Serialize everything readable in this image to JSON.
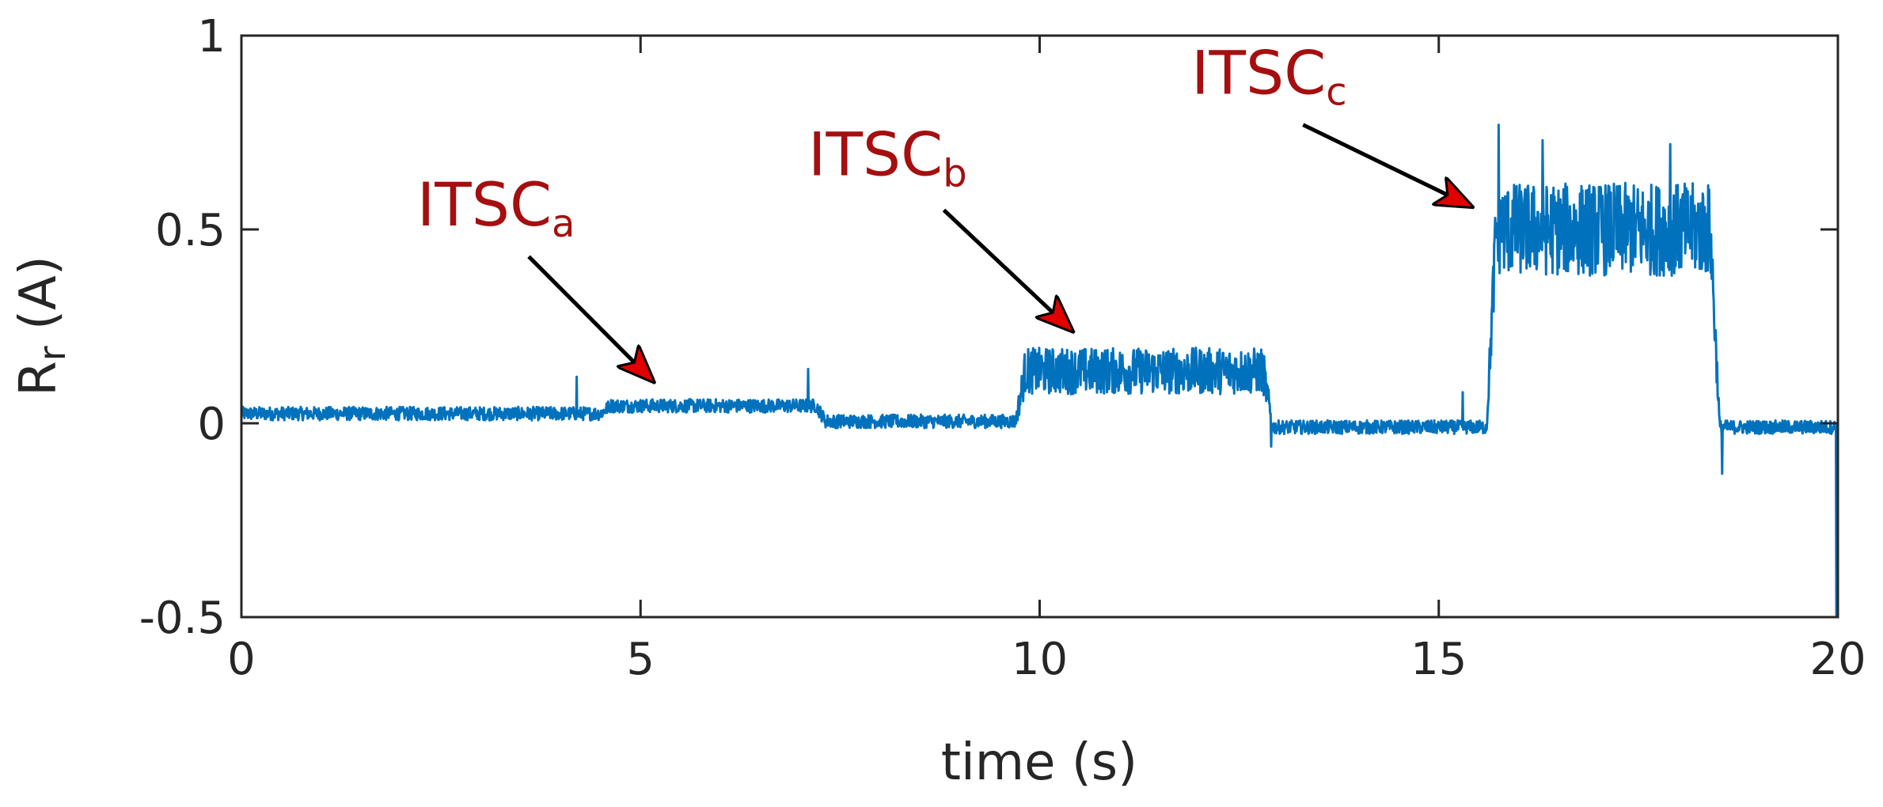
{
  "chart_data": {
    "type": "line",
    "xlabel": "time (s)",
    "ylabel": "R",
    "ylabel_sub": "r",
    "ylabel_unit": " (A)",
    "xlim": [
      0,
      20
    ],
    "ylim": [
      -0.5,
      1
    ],
    "xticks": [
      0,
      5,
      10,
      15,
      20
    ],
    "xtick_labels": [
      "0",
      "5",
      "10",
      "15",
      "20"
    ],
    "yticks": [
      -0.5,
      0,
      0.5,
      1
    ],
    "ytick_labels": [
      "-0.5",
      "0",
      "0.5",
      "1"
    ],
    "grid": false,
    "series": [
      {
        "name": "R_r",
        "color": "#0072bd",
        "segments": [
          {
            "t0": 0.0,
            "t1": 4.5,
            "mean": 0.025,
            "noise": 0.035
          },
          {
            "t0": 4.5,
            "t1": 7.2,
            "mean": 0.045,
            "noise": 0.035
          },
          {
            "t0": 7.2,
            "t1": 9.7,
            "mean": 0.005,
            "noise": 0.035
          },
          {
            "t0": 9.7,
            "t1": 12.8,
            "mean": 0.135,
            "noise": 0.12
          },
          {
            "t0": 12.8,
            "t1": 15.6,
            "mean": -0.01,
            "noise": 0.035
          },
          {
            "t0": 15.6,
            "t1": 18.4,
            "mean": 0.5,
            "noise": 0.24
          },
          {
            "t0": 18.4,
            "t1": 20.0,
            "mean": -0.01,
            "noise": 0.035
          }
        ],
        "spikes": [
          {
            "t": 4.2,
            "value": 0.12
          },
          {
            "t": 7.1,
            "value": 0.14
          },
          {
            "t": 15.3,
            "value": 0.08
          },
          {
            "t": 15.75,
            "value": 0.77
          },
          {
            "t": 16.3,
            "value": 0.73
          },
          {
            "t": 17.9,
            "value": 0.72
          },
          {
            "t": 18.55,
            "value": -0.13
          },
          {
            "t": 12.9,
            "value": -0.06
          },
          {
            "t": 19.98,
            "value": -0.5
          }
        ]
      }
    ],
    "annotations": [
      {
        "main": "ITSC",
        "sub": "a",
        "text_x": 2.2,
        "text_y": 0.51,
        "arrow_from": [
          3.6,
          0.43
        ],
        "arrow_to": [
          5.15,
          0.11
        ]
      },
      {
        "main": "ITSC",
        "sub": "b",
        "text_x": 7.1,
        "text_y": 0.64,
        "arrow_from": [
          8.8,
          0.55
        ],
        "arrow_to": [
          10.4,
          0.24
        ]
      },
      {
        "main": "ITSC",
        "sub": "c",
        "text_x": 11.9,
        "text_y": 0.85,
        "arrow_from": [
          13.3,
          0.77
        ],
        "arrow_to": [
          15.4,
          0.56
        ]
      }
    ]
  }
}
